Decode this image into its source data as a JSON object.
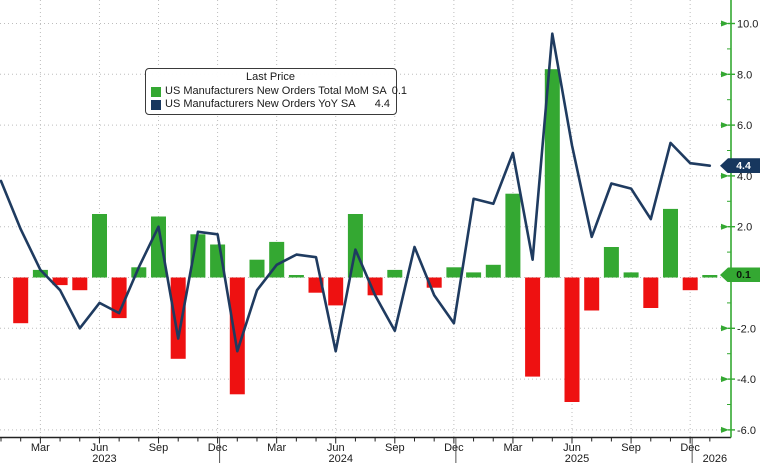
{
  "legend": {
    "title": "Last Price",
    "series": [
      {
        "label": "US Manufacturers New Orders Total MoM SA",
        "value": "0.1"
      },
      {
        "label": "US Manufacturers New Orders YoY SA",
        "value": "4.4"
      }
    ]
  },
  "colors": {
    "bar_up": "#34A832",
    "bar_down": "#EE1111",
    "line": "#1F3B60",
    "axis_green": "#34A832",
    "badge_yoy_bg": "#17375E",
    "badge_yoy_text": "#FFFFFF",
    "badge_mom_bg": "#34A832",
    "badge_mom_text": "#0B1A0B",
    "grid": "#BDBDBD",
    "text": "#1A1A1A",
    "x_axis_line": "#222222"
  },
  "chart_data": {
    "type": "bar",
    "title": "Last Price",
    "months": [
      "2023-01",
      "2023-02",
      "2023-03",
      "2023-04",
      "2023-05",
      "2023-06",
      "2023-07",
      "2023-08",
      "2023-09",
      "2023-10",
      "2023-11",
      "2023-12",
      "2024-01",
      "2024-02",
      "2024-03",
      "2024-04",
      "2024-05",
      "2024-06",
      "2024-07",
      "2024-08",
      "2024-09",
      "2024-10",
      "2024-11",
      "2024-12",
      "2025-01",
      "2025-02",
      "2025-03",
      "2025-04",
      "2025-05",
      "2025-06",
      "2025-07",
      "2025-08",
      "2025-09",
      "2025-10",
      "2025-11",
      "2025-12",
      "2026-01"
    ],
    "series": [
      {
        "name": "US Manufacturers New Orders Total MoM SA",
        "type": "bar",
        "last": 0.1,
        "values": [
          null,
          -1.8,
          0.3,
          -0.3,
          -0.5,
          2.5,
          -1.6,
          0.4,
          2.4,
          -3.2,
          1.7,
          1.3,
          -4.6,
          0.7,
          1.4,
          0.1,
          -0.6,
          -1.1,
          2.5,
          -0.7,
          0.3,
          0.0,
          -0.4,
          0.4,
          0.2,
          0.5,
          3.3,
          -3.9,
          8.2,
          -4.9,
          -1.3,
          1.2,
          0.2,
          -1.2,
          2.7,
          -0.5,
          0.1
        ]
      },
      {
        "name": "US Manufacturers New Orders YoY SA",
        "type": "line",
        "last": 4.4,
        "values": [
          3.8,
          1.9,
          0.3,
          -0.5,
          -2.0,
          -1.0,
          -1.4,
          0.4,
          2.0,
          -2.4,
          1.8,
          1.7,
          -2.9,
          -0.5,
          0.5,
          0.9,
          0.8,
          -2.9,
          1.1,
          -0.7,
          -2.1,
          1.2,
          -0.7,
          -1.8,
          3.1,
          2.9,
          4.9,
          0.7,
          9.6,
          5.2,
          1.6,
          3.7,
          3.5,
          2.3,
          5.3,
          4.5,
          4.4
        ]
      }
    ],
    "ylim": [
      -6,
      10
    ],
    "grid": true,
    "legend_position": "top-left",
    "y_axis": {
      "side": "right",
      "ticks": [
        {
          "v": 10,
          "label": "10.0"
        },
        {
          "v": 8,
          "label": "8.0"
        },
        {
          "v": 6,
          "label": "6.0"
        },
        {
          "v": 4,
          "label": "4.0"
        },
        {
          "v": 2,
          "label": "2.0"
        },
        {
          "v": -2,
          "label": "-2.0"
        },
        {
          "v": -4,
          "label": "-4.0"
        },
        {
          "v": -6,
          "label": "-6.0"
        }
      ],
      "gridline_values": [
        -6,
        -4,
        -2,
        0,
        2,
        4,
        6,
        8,
        10
      ]
    },
    "x_axis": {
      "quarter_ticks": [
        {
          "i": 2,
          "label": "Mar"
        },
        {
          "i": 5,
          "label": "Jun"
        },
        {
          "i": 8,
          "label": "Sep"
        },
        {
          "i": 11,
          "label": "Dec"
        },
        {
          "i": 14,
          "label": "Mar"
        },
        {
          "i": 17,
          "label": "Jun"
        },
        {
          "i": 20,
          "label": "Sep"
        },
        {
          "i": 23,
          "label": "Dec"
        },
        {
          "i": 26,
          "label": "Mar"
        },
        {
          "i": 29,
          "label": "Jun"
        },
        {
          "i": 32,
          "label": "Sep"
        },
        {
          "i": 35,
          "label": "Dec"
        }
      ],
      "year_labels": [
        {
          "label": "2023",
          "i": 5
        },
        {
          "label": "2024",
          "i": 17
        },
        {
          "label": "2025",
          "i": 29
        },
        {
          "label": "2026",
          "i": 36
        }
      ],
      "year_separators_i": [
        11,
        23,
        35
      ]
    }
  }
}
